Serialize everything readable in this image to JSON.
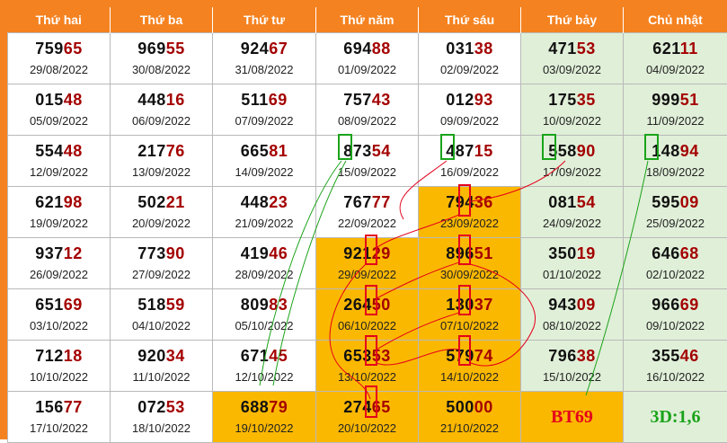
{
  "header": [
    "Thứ hai",
    "Thứ ba",
    "Thứ tư",
    "Thứ năm",
    "Thứ sáu",
    "Thứ bảy",
    "Chủ nhật"
  ],
  "rows": [
    [
      {
        "pre": "759",
        "last": "65",
        "date": "29/08/2022"
      },
      {
        "pre": "969",
        "last": "55",
        "date": "30/08/2022"
      },
      {
        "pre": "924",
        "last": "67",
        "date": "31/08/2022"
      },
      {
        "pre": "694",
        "last": "88",
        "date": "01/09/2022"
      },
      {
        "pre": "031",
        "last": "38",
        "date": "02/09/2022"
      },
      {
        "pre": "471",
        "last": "53",
        "date": "03/09/2022"
      },
      {
        "pre": "621",
        "last": "11",
        "date": "04/09/2022"
      }
    ],
    [
      {
        "pre": "015",
        "last": "48",
        "date": "05/09/2022"
      },
      {
        "pre": "448",
        "last": "16",
        "date": "06/09/2022"
      },
      {
        "pre": "511",
        "last": "69",
        "date": "07/09/2022"
      },
      {
        "pre": "757",
        "last": "43",
        "date": "08/09/2022"
      },
      {
        "pre": "012",
        "last": "93",
        "date": "09/09/2022"
      },
      {
        "pre": "175",
        "last": "35",
        "date": "10/09/2022"
      },
      {
        "pre": "999",
        "last": "51",
        "date": "11/09/2022"
      }
    ],
    [
      {
        "pre": "554",
        "last": "48",
        "date": "12/09/2022"
      },
      {
        "pre": "217",
        "last": "76",
        "date": "13/09/2022"
      },
      {
        "pre": "665",
        "last": "81",
        "date": "14/09/2022"
      },
      {
        "pre": "873",
        "last": "54",
        "date": "15/09/2022"
      },
      {
        "pre": "487",
        "last": "15",
        "date": "16/09/2022"
      },
      {
        "pre": "558",
        "last": "90",
        "date": "17/09/2022"
      },
      {
        "pre": "148",
        "last": "94",
        "date": "18/09/2022"
      }
    ],
    [
      {
        "pre": "621",
        "last": "98",
        "date": "19/09/2022"
      },
      {
        "pre": "502",
        "last": "21",
        "date": "20/09/2022"
      },
      {
        "pre": "448",
        "last": "23",
        "date": "21/09/2022"
      },
      {
        "pre": "767",
        "last": "77",
        "date": "22/09/2022"
      },
      {
        "pre": "794",
        "last": "36",
        "date": "23/09/2022",
        "hl": true
      },
      {
        "pre": "081",
        "last": "54",
        "date": "24/09/2022"
      },
      {
        "pre": "595",
        "last": "09",
        "date": "25/09/2022"
      }
    ],
    [
      {
        "pre": "937",
        "last": "12",
        "date": "26/09/2022"
      },
      {
        "pre": "773",
        "last": "90",
        "date": "27/09/2022"
      },
      {
        "pre": "419",
        "last": "46",
        "date": "28/09/2022"
      },
      {
        "pre": "921",
        "last": "29",
        "date": "29/09/2022",
        "hl": true
      },
      {
        "pre": "896",
        "last": "51",
        "date": "30/09/2022",
        "hl": true
      },
      {
        "pre": "350",
        "last": "19",
        "date": "01/10/2022"
      },
      {
        "pre": "646",
        "last": "68",
        "date": "02/10/2022"
      }
    ],
    [
      {
        "pre": "651",
        "last": "69",
        "date": "03/10/2022"
      },
      {
        "pre": "518",
        "last": "59",
        "date": "04/10/2022"
      },
      {
        "pre": "809",
        "last": "83",
        "date": "05/10/2022"
      },
      {
        "pre": "264",
        "last": "50",
        "date": "06/10/2022",
        "hl": true
      },
      {
        "pre": "130",
        "last": "37",
        "date": "07/10/2022",
        "hl": true
      },
      {
        "pre": "943",
        "last": "09",
        "date": "08/10/2022"
      },
      {
        "pre": "966",
        "last": "69",
        "date": "09/10/2022"
      }
    ],
    [
      {
        "pre": "712",
        "last": "18",
        "date": "10/10/2022"
      },
      {
        "pre": "920",
        "last": "34",
        "date": "11/10/2022"
      },
      {
        "pre": "671",
        "last": "45",
        "date": "12/10/2022"
      },
      {
        "pre": "653",
        "last": "53",
        "date": "13/10/2022",
        "hl": true
      },
      {
        "pre": "579",
        "last": "74",
        "date": "14/10/2022",
        "hl": true
      },
      {
        "pre": "796",
        "last": "38",
        "date": "15/10/2022"
      },
      {
        "pre": "355",
        "last": "46",
        "date": "16/10/2022"
      }
    ],
    [
      {
        "pre": "156",
        "last": "77",
        "date": "17/10/2022"
      },
      {
        "pre": "072",
        "last": "53",
        "date": "18/10/2022"
      },
      {
        "pre": "688",
        "last": "79",
        "date": "19/10/2022",
        "hl": true
      },
      {
        "pre": "274",
        "last": "65",
        "date": "20/10/2022",
        "hl": true
      },
      {
        "pre": "500",
        "last": "00",
        "date": "21/10/2022",
        "hl": true
      },
      {
        "label": "BT69",
        "hl": true
      },
      {
        "label": "3D:1,6"
      }
    ]
  ],
  "colors": {
    "frame": "#f58220",
    "highlight": "#fbb800",
    "weekend": "#e0efd8",
    "last_digits": "#a40000",
    "marker_red": "#e4001b",
    "marker_green": "#1aa31a"
  }
}
